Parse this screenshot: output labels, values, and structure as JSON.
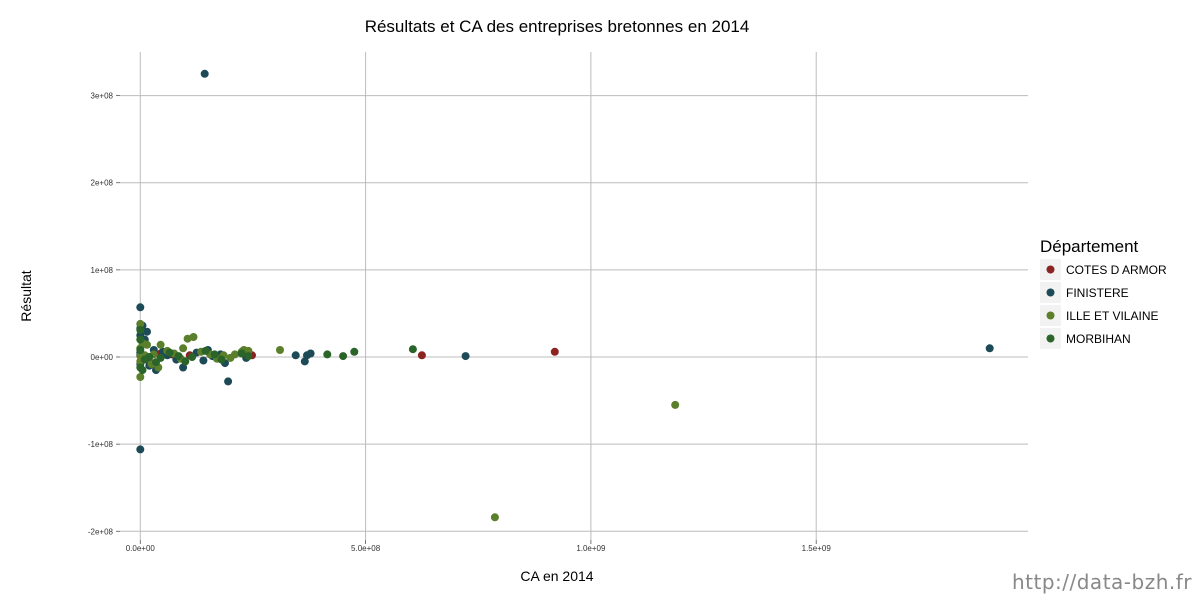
{
  "chart_data": {
    "type": "scatter",
    "title": "Résultats et CA des entreprises bretonnes en 2014",
    "xlabel": "CA en 2014",
    "ylabel": "Résultat",
    "xlim": [
      -45000000,
      1970000000
    ],
    "ylim": [
      -210000000,
      350000000
    ],
    "x_ticks": [
      {
        "value": 0,
        "label": "0.0e+00"
      },
      {
        "value": 500000000,
        "label": "5.0e+08"
      },
      {
        "value": 1000000000,
        "label": "1.0e+09"
      },
      {
        "value": 1500000000,
        "label": "1.5e+09"
      }
    ],
    "y_ticks": [
      {
        "value": -200000000,
        "label": "-2e+08"
      },
      {
        "value": -100000000,
        "label": "-1e+08"
      },
      {
        "value": 0,
        "label": "0e+00"
      },
      {
        "value": 100000000,
        "label": "1e+08"
      },
      {
        "value": 200000000,
        "label": "2e+08"
      },
      {
        "value": 300000000,
        "label": "3e+08"
      }
    ],
    "grid": true,
    "legend": {
      "title": "Département",
      "placement": "right"
    },
    "series": [
      {
        "name": "COTES D ARMOR",
        "color": "#8b2323",
        "points": [
          [
            625000000,
            2000000
          ],
          [
            920000000,
            6000000
          ],
          [
            248000000,
            2000000
          ],
          [
            20000000,
            -5000000
          ],
          [
            70000000,
            3000000
          ],
          [
            10000000,
            1000000
          ],
          [
            110000000,
            2000000
          ],
          [
            5000000,
            -2000000
          ],
          [
            45000000,
            4000000
          ]
        ]
      },
      {
        "name": "FINISTERE",
        "color": "#1c4a57",
        "points": [
          [
            143000000,
            325000000
          ],
          [
            1885000000,
            10000000
          ],
          [
            722000000,
            1000000
          ],
          [
            0,
            57000000
          ],
          [
            0,
            -106000000
          ],
          [
            195000000,
            -28000000
          ],
          [
            0,
            33000000
          ],
          [
            15000000,
            29000000
          ],
          [
            5000000,
            36000000
          ],
          [
            0,
            25000000
          ],
          [
            10000000,
            20000000
          ],
          [
            365000000,
            -5000000
          ],
          [
            370000000,
            2000000
          ],
          [
            378000000,
            4000000
          ],
          [
            345000000,
            2000000
          ],
          [
            95000000,
            -12000000
          ],
          [
            188000000,
            -7000000
          ],
          [
            150000000,
            8000000
          ],
          [
            178000000,
            3000000
          ],
          [
            235000000,
            -1000000
          ],
          [
            35000000,
            -15000000
          ],
          [
            20000000,
            -10000000
          ],
          [
            60000000,
            2000000
          ],
          [
            80000000,
            -3000000
          ],
          [
            125000000,
            5000000
          ],
          [
            0,
            -8000000
          ],
          [
            0,
            5000000
          ],
          [
            30000000,
            8000000
          ],
          [
            50000000,
            6000000
          ],
          [
            140000000,
            -4000000
          ],
          [
            160000000,
            1000000
          ],
          [
            0,
            2000000
          ]
        ]
      },
      {
        "name": "ILLE ET VILAINE",
        "color": "#5b7f2a",
        "points": [
          [
            1187000000,
            -55000000
          ],
          [
            787000000,
            -184000000
          ],
          [
            310000000,
            8000000
          ],
          [
            0,
            -23000000
          ],
          [
            0,
            38000000
          ],
          [
            105000000,
            21000000
          ],
          [
            118000000,
            23000000
          ],
          [
            5000000,
            16000000
          ],
          [
            15000000,
            14000000
          ],
          [
            0,
            10000000
          ],
          [
            45000000,
            14000000
          ],
          [
            95000000,
            10000000
          ],
          [
            210000000,
            3000000
          ],
          [
            225000000,
            6000000
          ],
          [
            240000000,
            7000000
          ],
          [
            230000000,
            8000000
          ],
          [
            185000000,
            2000000
          ],
          [
            170000000,
            -2000000
          ],
          [
            40000000,
            -12000000
          ],
          [
            25000000,
            -8000000
          ],
          [
            60000000,
            7000000
          ],
          [
            75000000,
            4000000
          ],
          [
            135000000,
            6000000
          ],
          [
            155000000,
            3000000
          ],
          [
            0,
            -5000000
          ],
          [
            10000000,
            2000000
          ],
          [
            30000000,
            3000000
          ],
          [
            90000000,
            -2000000
          ],
          [
            200000000,
            -1000000
          ],
          [
            0,
            1000000
          ]
        ]
      },
      {
        "name": "MORBIHAN",
        "color": "#2a6429",
        "points": [
          [
            605000000,
            9000000
          ],
          [
            475000000,
            6000000
          ],
          [
            415000000,
            3000000
          ],
          [
            450000000,
            1000000
          ],
          [
            0,
            31000000
          ],
          [
            0,
            20000000
          ],
          [
            20000000,
            0
          ],
          [
            10000000,
            -3000000
          ],
          [
            45000000,
            -1000000
          ],
          [
            85000000,
            1000000
          ],
          [
            145000000,
            7000000
          ],
          [
            225000000,
            4000000
          ],
          [
            165000000,
            3000000
          ],
          [
            240000000,
            1000000
          ],
          [
            0,
            -12000000
          ],
          [
            35000000,
            -6000000
          ],
          [
            115000000,
            0
          ],
          [
            65000000,
            5000000
          ],
          [
            180000000,
            -3000000
          ],
          [
            0,
            8000000
          ],
          [
            5000000,
            -15000000
          ],
          [
            100000000,
            -5000000
          ]
        ]
      }
    ]
  },
  "watermark": "http://data-bzh.fr"
}
